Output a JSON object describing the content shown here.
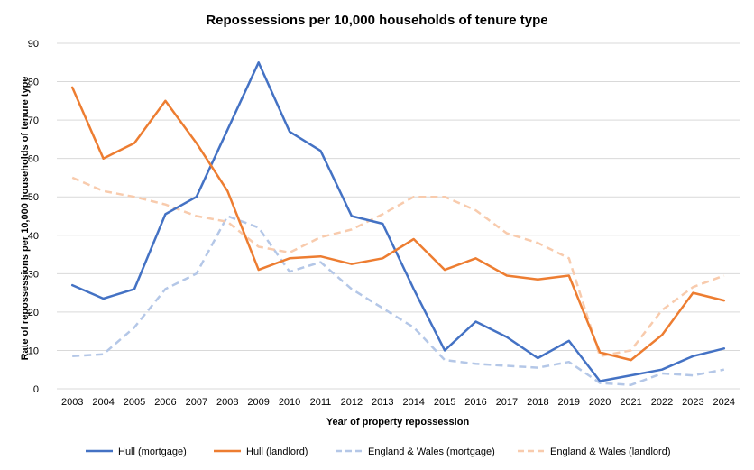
{
  "chart_data": {
    "type": "line",
    "title": "Repossessions per 10,000 households of tenure type",
    "xlabel": "Year of property repossession",
    "ylabel": "Rate of repossessions  per 10,000 households  of tenure type",
    "ylim": [
      0,
      90
    ],
    "yticks": [
      "0",
      "10",
      "20",
      "30",
      "40",
      "50",
      "60",
      "70",
      "80",
      "90"
    ],
    "grid": true,
    "legend_position": "bottom",
    "categories": [
      "2003",
      "2004",
      "2005",
      "2006",
      "2007",
      "2008",
      "2009",
      "2010",
      "2011",
      "2012",
      "2013",
      "2014",
      "2015",
      "2016",
      "2017",
      "2018",
      "2019",
      "2020",
      "2021",
      "2022",
      "2023",
      "2024"
    ],
    "series": [
      {
        "name": "Hull (mortgage)",
        "color": "#4472c4",
        "dashed": false,
        "values": [
          27,
          23.5,
          26,
          45.5,
          50,
          67.5,
          85,
          67,
          62,
          45,
          43,
          26,
          10,
          17.5,
          13.5,
          8,
          12.5,
          2,
          3.5,
          5,
          8.5,
          10.5
        ]
      },
      {
        "name": "Hull (landlord)",
        "color": "#ed7d31",
        "dashed": false,
        "values": [
          78.5,
          60,
          64,
          75,
          64,
          51.5,
          31,
          34,
          34.5,
          32.5,
          34,
          39,
          31,
          34,
          29.5,
          28.5,
          29.5,
          9.5,
          7.5,
          14,
          25,
          23
        ]
      },
      {
        "name": "England & Wales (mortgage)",
        "color": "#b4c7e7",
        "dashed": true,
        "values": [
          8.5,
          9,
          16,
          26,
          30,
          45,
          42,
          30.5,
          33,
          26,
          21,
          16,
          7.5,
          6.5,
          6,
          5.5,
          7,
          1.5,
          1,
          4,
          3.5,
          5
        ]
      },
      {
        "name": "England & Wales (landlord)",
        "color": "#f8cbad",
        "dashed": true,
        "values": [
          55,
          51.5,
          50,
          48,
          45,
          43.5,
          37,
          35.5,
          39.5,
          41.5,
          45.5,
          50,
          50,
          46.5,
          40.5,
          38,
          34,
          8.5,
          10,
          20.5,
          26.5,
          29.5
        ]
      }
    ]
  }
}
